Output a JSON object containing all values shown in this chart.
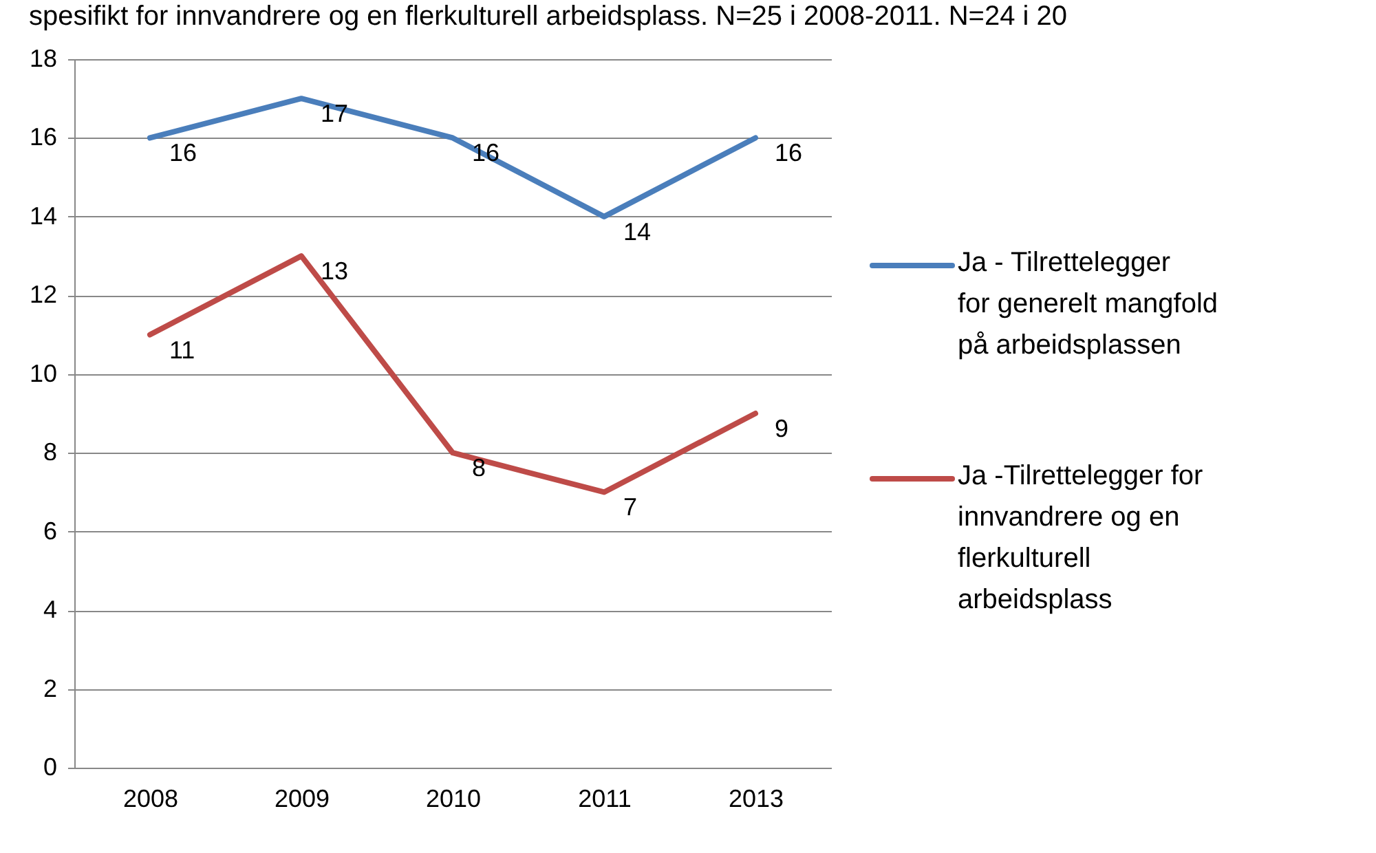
{
  "chart_data": {
    "type": "line",
    "subtitle": "spesifikt for innvandrere og en flerkulturell arbeidsplass. N=25 i 2008-2011. N=24 i 20",
    "categories": [
      "2008",
      "2009",
      "2010",
      "2011",
      "2013"
    ],
    "series": [
      {
        "name": "Ja - Tilrettelegger for generelt mangfold på arbeidsplassen",
        "color": "#4a7ebb",
        "values": [
          16,
          17,
          16,
          14,
          16
        ]
      },
      {
        "name": "Ja -Tilrettelegger for innvandrere og en flerkulturell arbeidsplass",
        "color": "#be4b48",
        "values": [
          11,
          13,
          8,
          7,
          9
        ]
      }
    ],
    "ylim": [
      0,
      18
    ],
    "yticks": [
      0,
      2,
      4,
      6,
      8,
      10,
      12,
      14,
      16,
      18
    ],
    "grid": "y",
    "legend": "right",
    "data_labels": true,
    "marker": "none",
    "line_style": "solid"
  }
}
